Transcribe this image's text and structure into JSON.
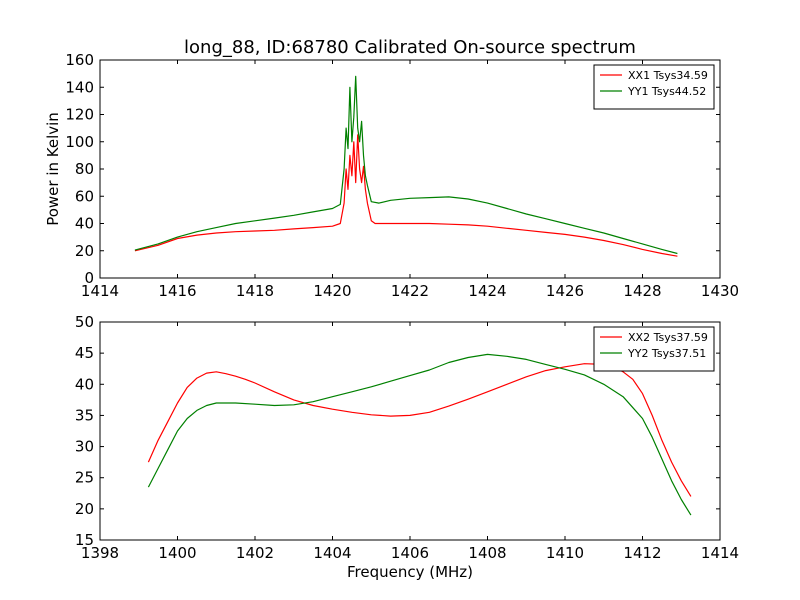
{
  "figure": {
    "title": "long_88, ID:68780 Calibrated On-source spectrum",
    "xlabel": "Frequency (MHz)",
    "ylabel": "Power in Kelvin"
  },
  "chart_data": [
    {
      "type": "line",
      "title": "long_88, ID:68780 Calibrated On-source spectrum",
      "xlabel": "",
      "ylabel": "Power in Kelvin",
      "xlim": [
        1414,
        1430
      ],
      "ylim": [
        0,
        160
      ],
      "xticks": [
        1414,
        1416,
        1418,
        1420,
        1422,
        1424,
        1426,
        1428,
        1430
      ],
      "yticks": [
        0,
        20,
        40,
        60,
        80,
        100,
        120,
        140,
        160
      ],
      "legend": "top-right",
      "grid": false,
      "series": [
        {
          "name": "XX1 Tsys34.59",
          "color": "#ff0000",
          "x": [
            1414.9,
            1415.5,
            1416,
            1416.5,
            1417,
            1417.5,
            1418,
            1418.5,
            1419,
            1419.5,
            1420,
            1420.2,
            1420.3,
            1420.35,
            1420.4,
            1420.45,
            1420.5,
            1420.55,
            1420.6,
            1420.65,
            1420.7,
            1420.75,
            1420.8,
            1420.85,
            1420.9,
            1421,
            1421.1,
            1421.5,
            1422,
            1422.5,
            1423,
            1423.5,
            1424,
            1424.5,
            1425,
            1425.5,
            1426,
            1426.5,
            1427,
            1427.5,
            1428,
            1428.5,
            1428.9
          ],
          "y": [
            20,
            24,
            29,
            31.5,
            33,
            34,
            34.5,
            35,
            36,
            37,
            38,
            40,
            55,
            80,
            65,
            90,
            75,
            100,
            70,
            105,
            80,
            70,
            82,
            65,
            55,
            42,
            40,
            40,
            40,
            40,
            39.5,
            39,
            38,
            36.5,
            35,
            33.5,
            32,
            30,
            27.5,
            24.5,
            21,
            18,
            16
          ]
        },
        {
          "name": "YY1 Tsys44.52",
          "color": "#008000",
          "x": [
            1414.9,
            1415.5,
            1416,
            1416.5,
            1417,
            1417.5,
            1418,
            1418.5,
            1419,
            1419.5,
            1420,
            1420.2,
            1420.3,
            1420.35,
            1420.4,
            1420.45,
            1420.5,
            1420.55,
            1420.6,
            1420.65,
            1420.7,
            1420.75,
            1420.8,
            1420.85,
            1420.9,
            1421,
            1421.2,
            1421.5,
            1422,
            1422.5,
            1423,
            1423.5,
            1424,
            1424.5,
            1425,
            1425.5,
            1426,
            1426.5,
            1427,
            1427.5,
            1428,
            1428.5,
            1428.9
          ],
          "y": [
            20.5,
            25,
            30,
            34,
            37,
            40,
            42,
            44,
            46,
            48.5,
            51,
            54,
            80,
            110,
            95,
            140,
            100,
            118,
            148,
            110,
            100,
            115,
            90,
            75,
            68,
            56,
            55,
            57,
            58.5,
            59,
            59.5,
            58,
            55,
            51,
            47,
            43.5,
            40,
            36.5,
            33,
            29,
            25,
            21,
            18
          ]
        }
      ]
    },
    {
      "type": "line",
      "title": "",
      "xlabel": "Frequency (MHz)",
      "ylabel": "",
      "xlim": [
        1398,
        1414
      ],
      "ylim": [
        15,
        50
      ],
      "xticks": [
        1398,
        1400,
        1402,
        1404,
        1406,
        1408,
        1410,
        1412,
        1414
      ],
      "yticks": [
        15,
        20,
        25,
        30,
        35,
        40,
        45,
        50
      ],
      "legend": "top-right",
      "grid": false,
      "series": [
        {
          "name": "XX2 Tsys37.59",
          "color": "#ff0000",
          "x": [
            1399.25,
            1399.5,
            1399.75,
            1400,
            1400.25,
            1400.5,
            1400.75,
            1401,
            1401.25,
            1401.5,
            1401.75,
            1402,
            1402.5,
            1403,
            1403.5,
            1404,
            1404.5,
            1405,
            1405.5,
            1406,
            1406.5,
            1407,
            1407.5,
            1408,
            1408.5,
            1409,
            1409.5,
            1410,
            1410.5,
            1411,
            1411.25,
            1411.5,
            1411.75,
            1412,
            1412.25,
            1412.5,
            1412.75,
            1413,
            1413.25
          ],
          "y": [
            27.5,
            31,
            34,
            37,
            39.5,
            41,
            41.8,
            42,
            41.7,
            41.3,
            40.8,
            40.2,
            38.8,
            37.5,
            36.6,
            36,
            35.5,
            35.1,
            34.9,
            35,
            35.5,
            36.5,
            37.6,
            38.8,
            40,
            41.2,
            42.2,
            42.8,
            43.3,
            43.2,
            42.8,
            42,
            40.8,
            38.5,
            35,
            31,
            27.5,
            24.5,
            22
          ]
        },
        {
          "name": "YY2 Tsys37.51",
          "color": "#008000",
          "x": [
            1399.25,
            1399.5,
            1399.75,
            1400,
            1400.25,
            1400.5,
            1400.75,
            1401,
            1401.5,
            1402,
            1402.5,
            1403,
            1403.5,
            1404,
            1404.5,
            1405,
            1405.5,
            1406,
            1406.5,
            1407,
            1407.5,
            1408,
            1408.5,
            1409,
            1409.5,
            1410,
            1410.5,
            1411,
            1411.5,
            1412,
            1412.25,
            1412.5,
            1412.75,
            1413,
            1413.25
          ],
          "y": [
            23.5,
            26.5,
            29.5,
            32.5,
            34.5,
            35.8,
            36.6,
            37,
            37,
            36.8,
            36.6,
            36.7,
            37.2,
            38,
            38.8,
            39.6,
            40.5,
            41.4,
            42.3,
            43.5,
            44.3,
            44.8,
            44.5,
            44,
            43.2,
            42.4,
            41.5,
            40,
            38,
            34.5,
            31.5,
            28,
            24.5,
            21.5,
            19
          ]
        }
      ]
    }
  ]
}
